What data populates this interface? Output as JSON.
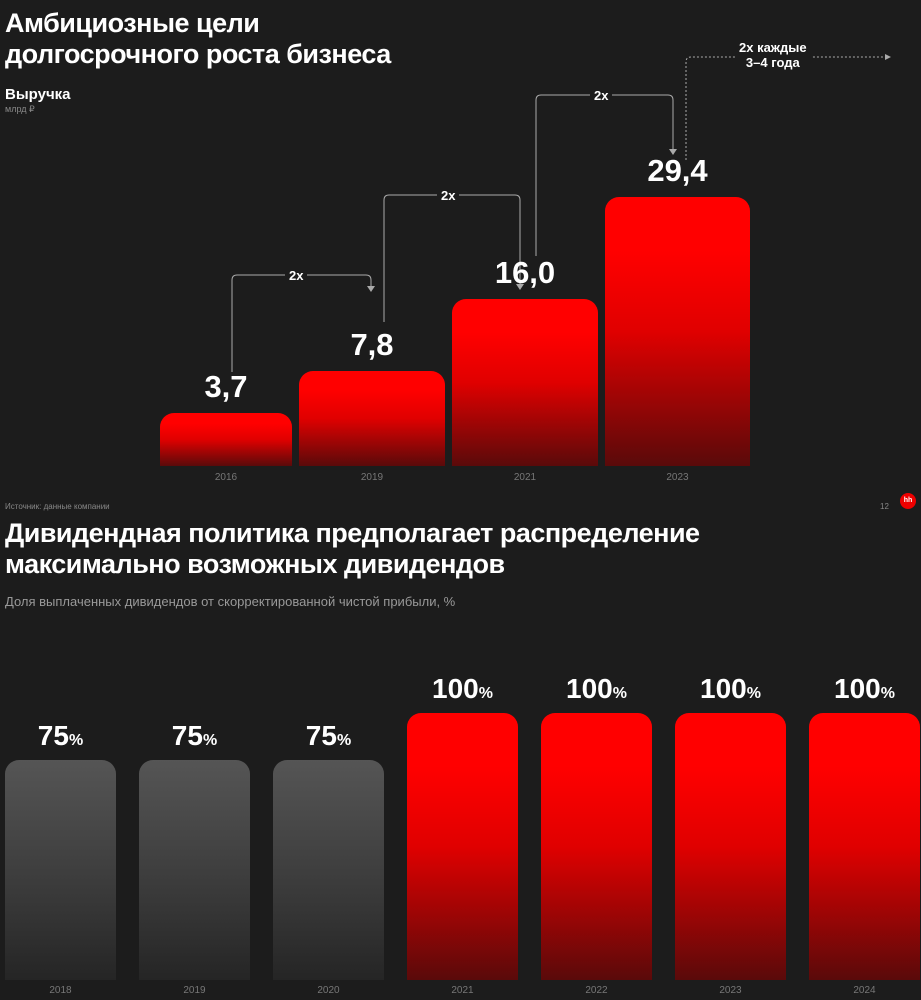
{
  "top": {
    "title_line1": "Амбициозные цели",
    "title_line2": "долгосрочного роста бизнеса",
    "subtitle": "Выручка",
    "unit": "млрд ₽",
    "multipliers": [
      "2x",
      "2x",
      "2x"
    ],
    "note_line1": "2x каждые",
    "note_line2": "3–4 года"
  },
  "footer": {
    "source": "Источник: данные компании",
    "page": "12",
    "logo": "hh"
  },
  "bottom": {
    "title_line1": "Дивидендная политика предполагает распределение",
    "title_line2": "максимально возможных дивидендов",
    "subtitle": "Доля выплаченных дивидендов от скорректированной чистой прибыли, %"
  },
  "colors": {
    "accent": "#ff0000",
    "gray": "#4a4a4a",
    "bg": "#1c1c1c"
  },
  "chart_data": [
    {
      "type": "bar",
      "title": "Выручка",
      "ylabel": "млрд ₽",
      "categories": [
        "2016",
        "2019",
        "2021",
        "2023"
      ],
      "values": [
        3.7,
        7.8,
        16.0,
        29.4
      ],
      "labels": [
        "3,7",
        "7,8",
        "16,0",
        "29,4"
      ]
    },
    {
      "type": "bar",
      "title": "Доля выплаченных дивидендов от скорректированной чистой прибыли, %",
      "categories": [
        "2018",
        "2019",
        "2020",
        "2021",
        "2022",
        "2023",
        "2024"
      ],
      "values": [
        75,
        75,
        75,
        100,
        100,
        100,
        100
      ],
      "labels": [
        "75",
        "75",
        "75",
        "100",
        "100",
        "100",
        "100"
      ],
      "suffix": "%"
    }
  ]
}
